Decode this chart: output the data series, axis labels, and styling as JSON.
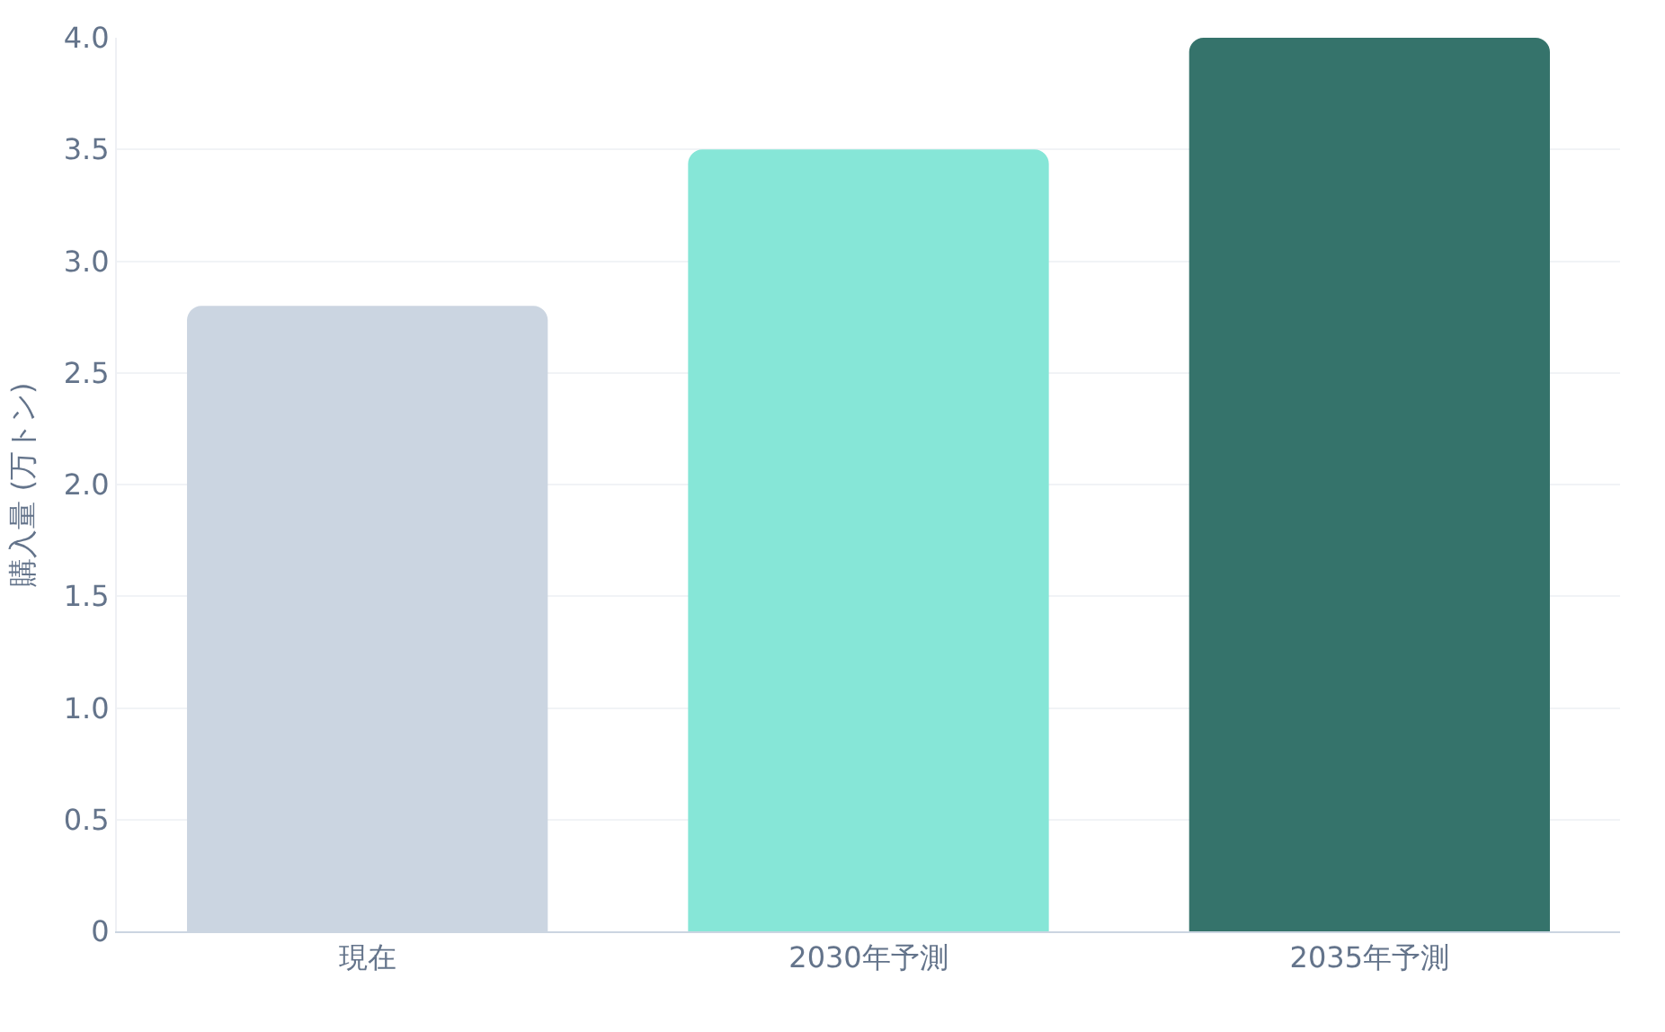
{
  "chart_data": {
    "type": "bar",
    "ylabel": "購入量 (万トン)",
    "categories": [
      "現在",
      "2030年予測",
      "2035年予測"
    ],
    "values": [
      2.8,
      3.5,
      4.0
    ],
    "colors": [
      "#cbd5e1",
      "#86e6d7",
      "#35736b"
    ],
    "ylim": [
      0,
      4
    ],
    "yticks": [
      0,
      {
        "value": 0.5,
        "label": "0.5"
      },
      {
        "value": 1,
        "label": "1.0"
      },
      {
        "value": 1.5,
        "label": "1.5"
      },
      {
        "value": 2,
        "label": "2.0"
      },
      {
        "value": 2.5,
        "label": "2.5"
      },
      {
        "value": 3,
        "label": "3.0"
      },
      {
        "value": 3.5,
        "label": "3.5"
      },
      {
        "value": 4,
        "label": "4.0"
      }
    ],
    "grid": "y"
  }
}
